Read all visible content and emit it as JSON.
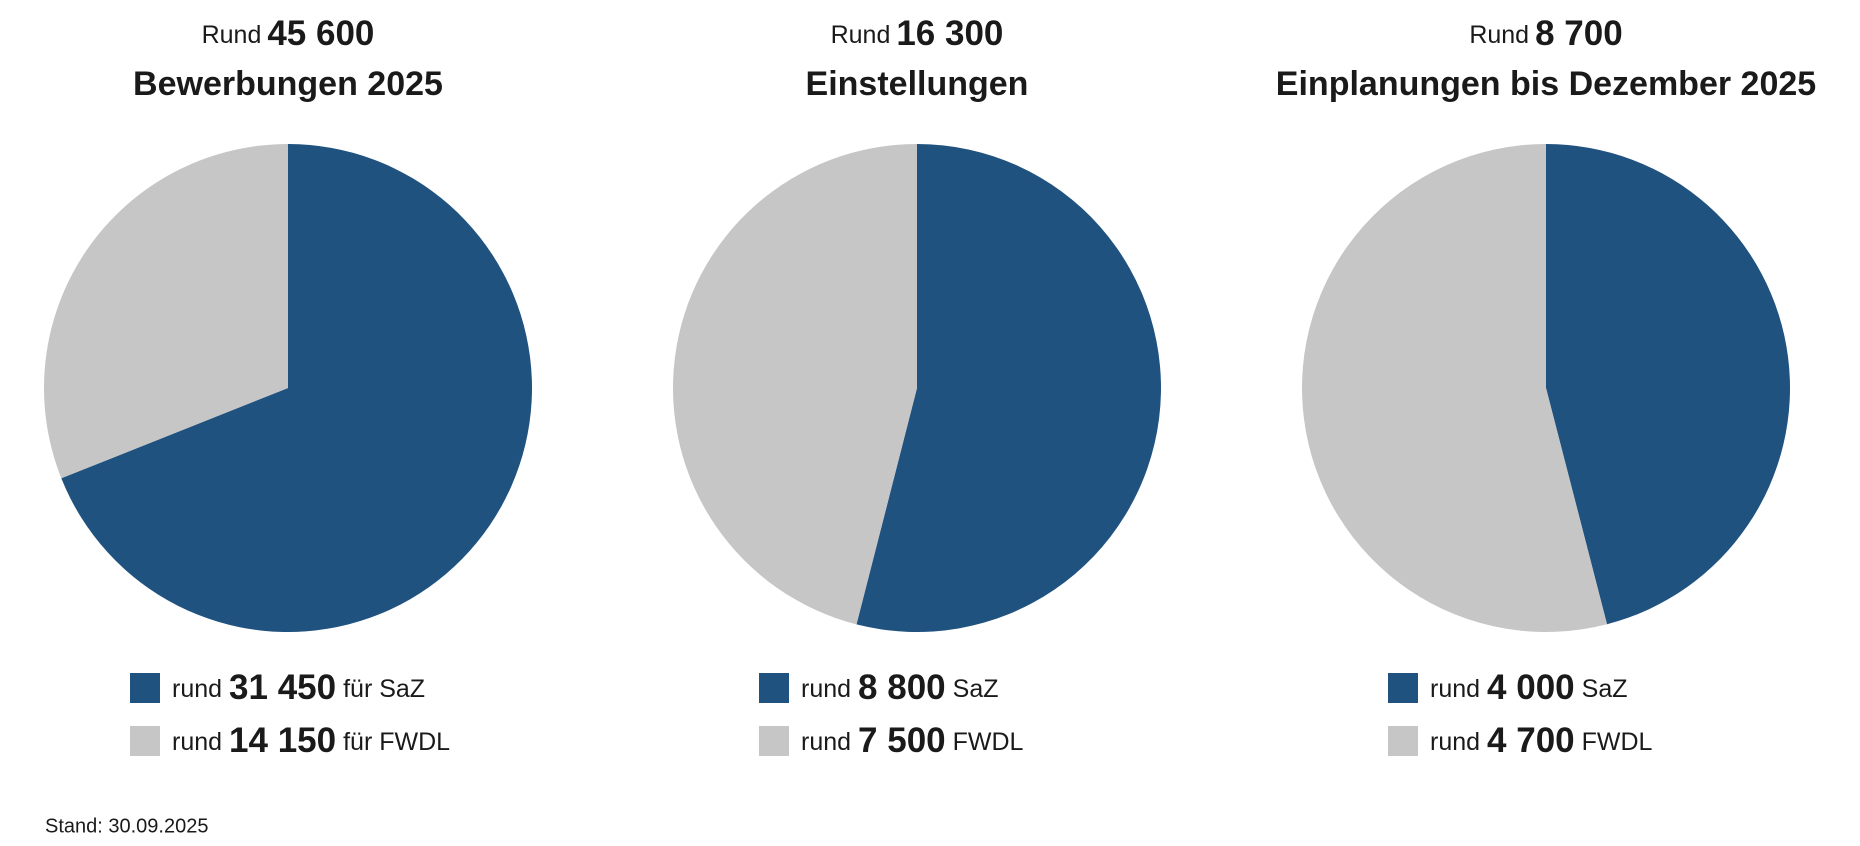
{
  "chart_data": [
    {
      "type": "pie",
      "title_prefix": "Rund",
      "title_number": "45 600",
      "title": "Bewerbungen 2025",
      "label_prefix": "rund",
      "categories": [
        "für SaZ",
        "für FWDL"
      ],
      "values": [
        31450,
        14150
      ],
      "value_labels": [
        "31 450",
        "14 150"
      ],
      "colors": [
        "#1f527f",
        "#c6c6c6"
      ]
    },
    {
      "type": "pie",
      "title_prefix": "Rund",
      "title_number": "16 300",
      "title": "Einstellungen",
      "label_prefix": "rund",
      "categories": [
        "SaZ",
        "FWDL"
      ],
      "values": [
        8800,
        7500
      ],
      "value_labels": [
        "8 800",
        "7 500"
      ],
      "colors": [
        "#1f527f",
        "#c6c6c6"
      ]
    },
    {
      "type": "pie",
      "title_prefix": "Rund",
      "title_number": "8 700",
      "title": "Einplanungen bis Dezember 2025",
      "label_prefix": "rund",
      "categories": [
        "SaZ",
        "FWDL"
      ],
      "values": [
        4000,
        4700
      ],
      "value_labels": [
        "4 000",
        "4 700"
      ],
      "colors": [
        "#1f527f",
        "#c6c6c6"
      ]
    }
  ],
  "footnote": "Stand: 30.09.2025"
}
